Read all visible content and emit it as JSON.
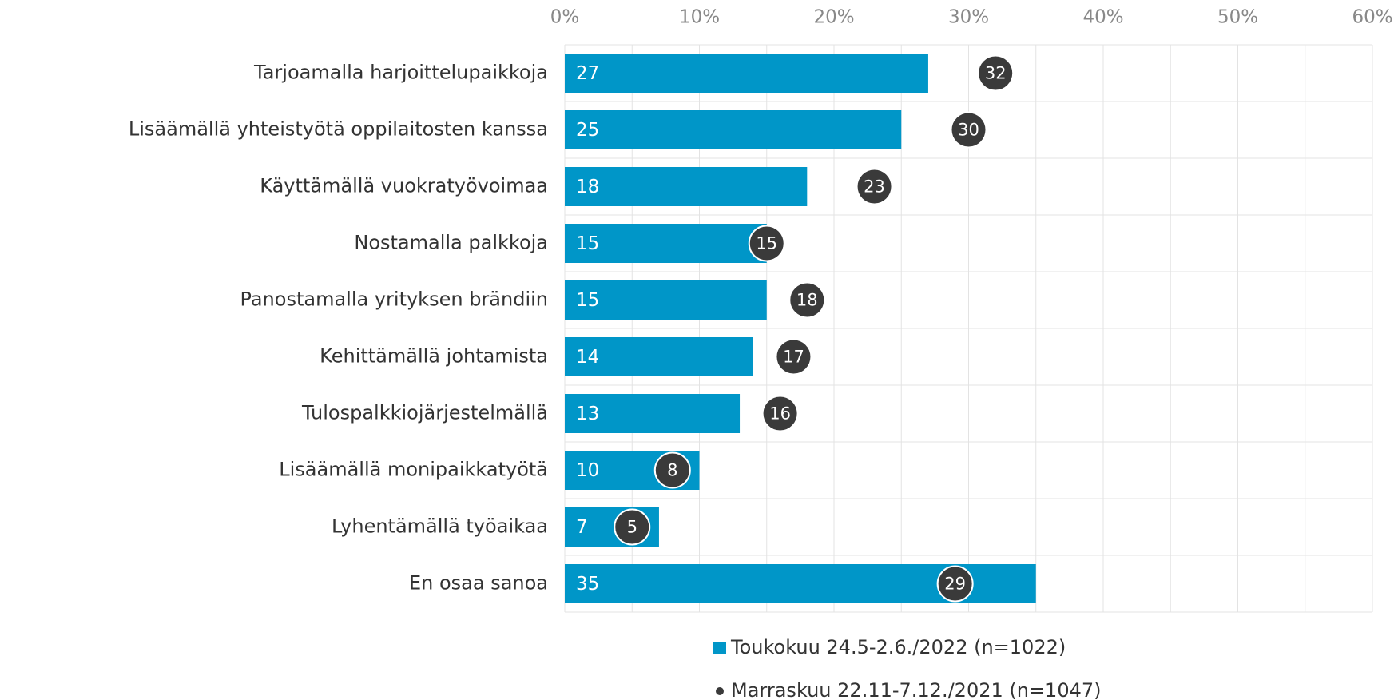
{
  "chart_data": {
    "type": "bar",
    "orientation": "horizontal",
    "categories": [
      "Tarjoamalla harjoittelupaikkoja",
      "Lisäämällä yhteistyötä oppilaitosten kanssa",
      "Käyttämällä vuokratyövoimaa",
      "Nostamalla palkkoja",
      "Panostamalla yrityksen brändiin",
      "Kehittämällä johtamista",
      "Tulospalkkiojärjestelmällä",
      "Lisäämällä monipaikkatyötä",
      "Lyhentämällä työaikaa",
      "En osaa sanoa"
    ],
    "series": [
      {
        "name": "Toukokuu 24.5-2.6./2022 (n=1022)",
        "color": "#0096c8",
        "style": "bar",
        "values": [
          27,
          25,
          18,
          15,
          15,
          14,
          13,
          10,
          7,
          35
        ]
      },
      {
        "name": "Marraskuu 22.11-7.12./2021 (n=1047)",
        "color": "#3a3a3a",
        "style": "dot",
        "values": [
          32,
          30,
          23,
          15,
          18,
          17,
          16,
          8,
          5,
          29
        ]
      }
    ],
    "xlim": [
      0,
      60
    ],
    "xticks": [
      {
        "value": 0,
        "label": "0%"
      },
      {
        "value": 10,
        "label": "10%"
      },
      {
        "value": 20,
        "label": "20%"
      },
      {
        "value": 30,
        "label": "30%"
      },
      {
        "value": 40,
        "label": "40%"
      },
      {
        "value": 50,
        "label": "50%"
      },
      {
        "value": 60,
        "label": "60%"
      }
    ],
    "minor_xticks": [
      5,
      15,
      25,
      35,
      45,
      55
    ],
    "grid": true
  }
}
